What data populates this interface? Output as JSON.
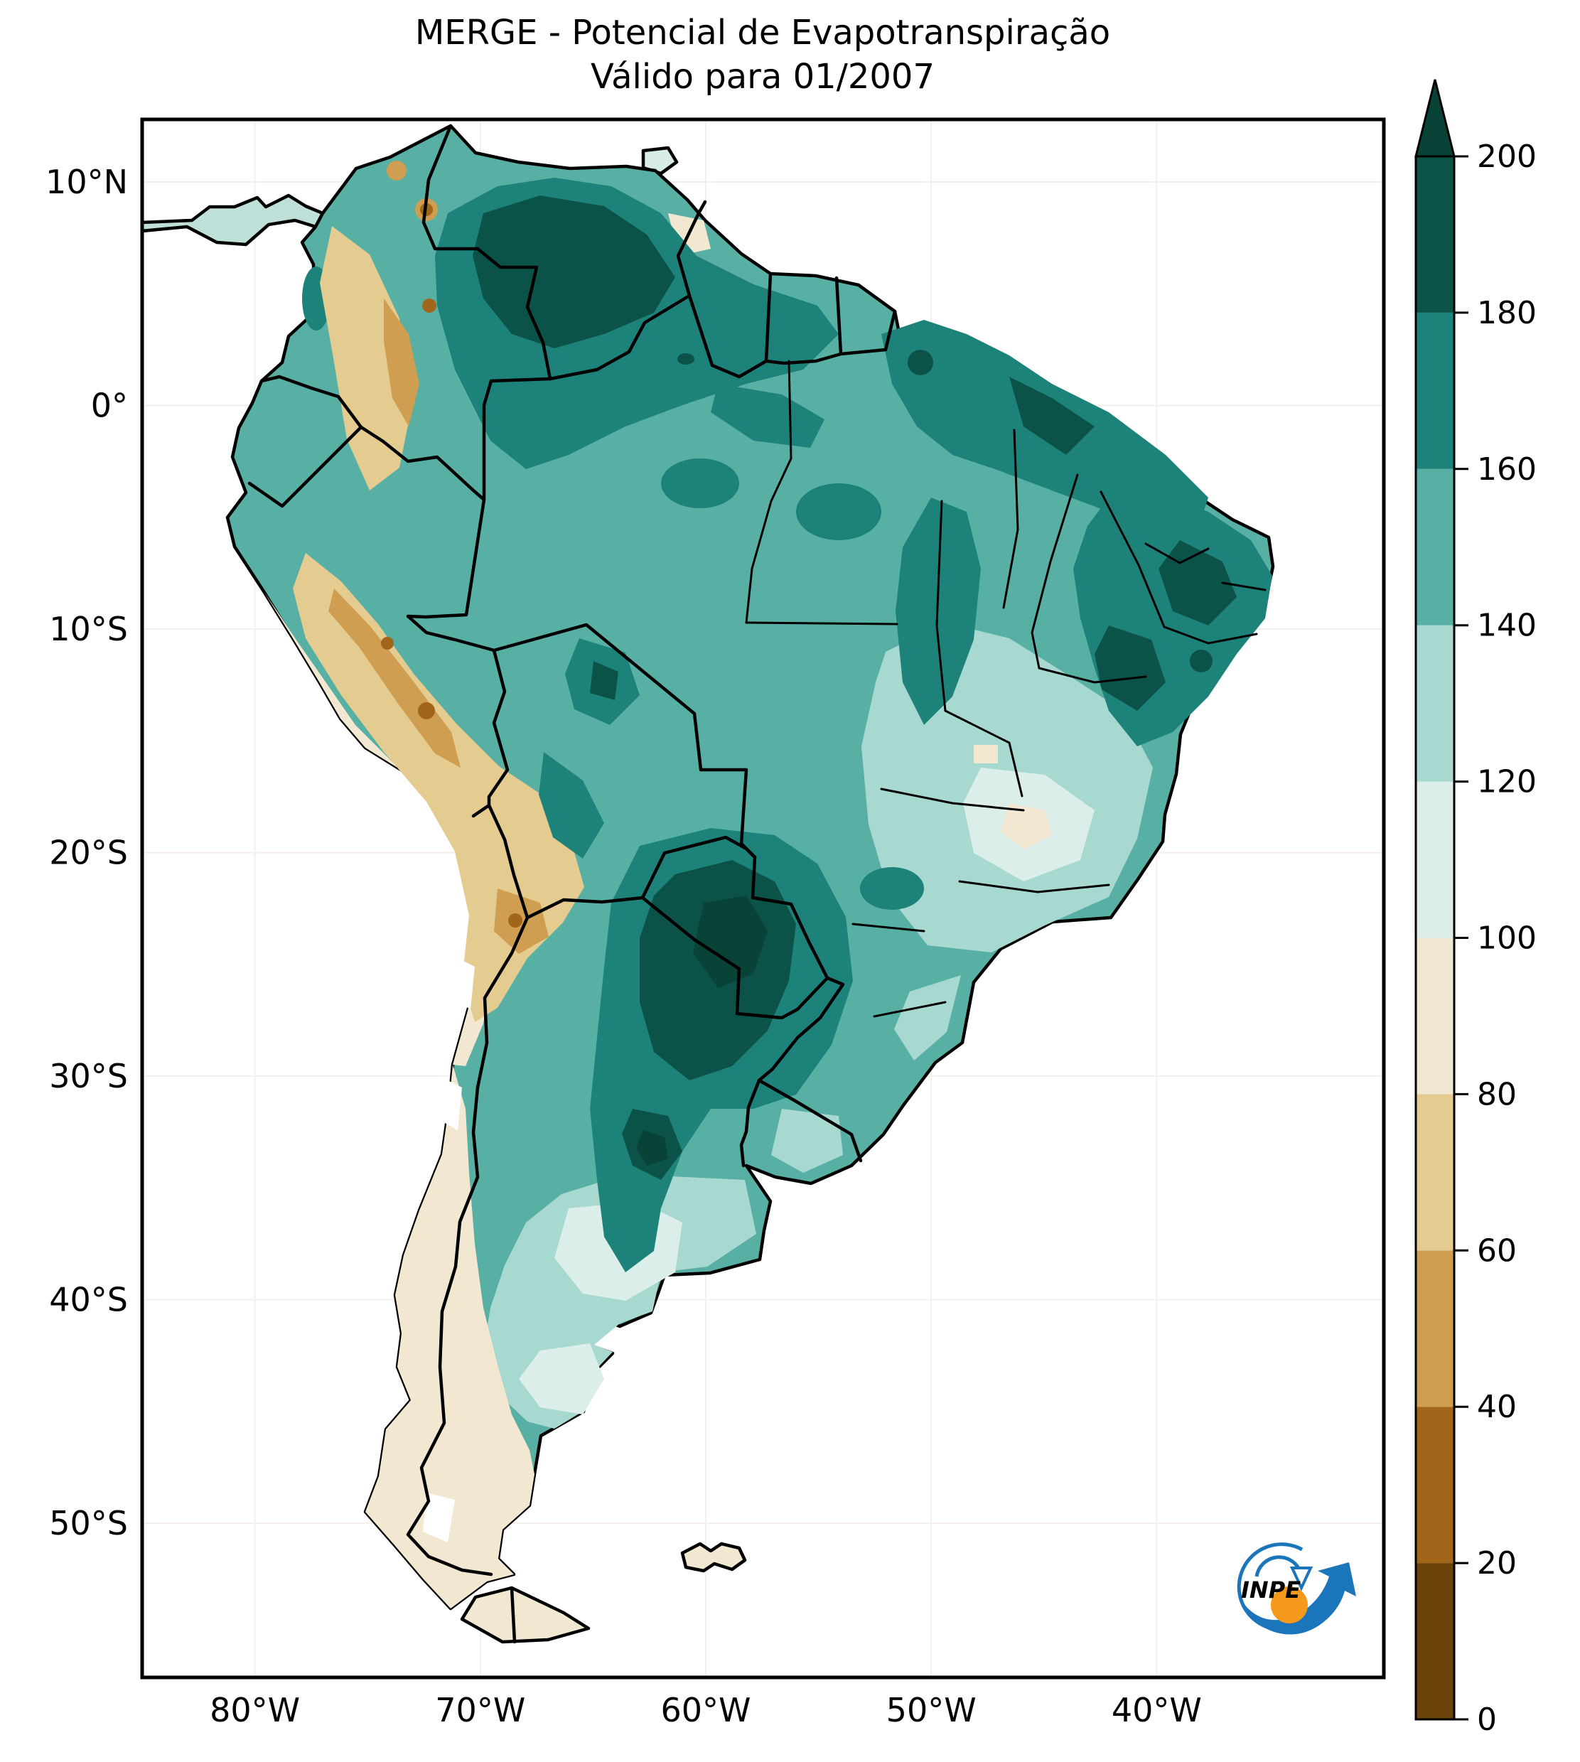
{
  "figure": {
    "title_line1": "MERGE - Potencial de Evapotranspiração",
    "title_line2": "Válido para 01/2007"
  },
  "axes": {
    "y_ticks": [
      {
        "label": "10°N",
        "lat": 10
      },
      {
        "label": "0°",
        "lat": 0
      },
      {
        "label": "10°S",
        "lat": -10
      },
      {
        "label": "20°S",
        "lat": -20
      },
      {
        "label": "30°S",
        "lat": -30
      },
      {
        "label": "40°S",
        "lat": -40
      },
      {
        "label": "50°S",
        "lat": -50
      }
    ],
    "x_ticks": [
      {
        "label": "80°W",
        "lon": -80
      },
      {
        "label": "70°W",
        "lon": -70
      },
      {
        "label": "60°W",
        "lon": -60
      },
      {
        "label": "50°W",
        "lon": -50
      },
      {
        "label": "40°W",
        "lon": -40
      }
    ]
  },
  "colorbar": {
    "min": 0,
    "max": 200,
    "ticks": [
      0,
      20,
      40,
      60,
      80,
      100,
      120,
      140,
      160,
      180,
      200
    ],
    "extend": "max",
    "extend_max_color": "#094237",
    "segments": [
      {
        "from": 0,
        "to": 20,
        "color": "#6b4208"
      },
      {
        "from": 20,
        "to": 40,
        "color": "#a2661b"
      },
      {
        "from": 40,
        "to": 60,
        "color": "#cf9e50"
      },
      {
        "from": 60,
        "to": 80,
        "color": "#e4cb90"
      },
      {
        "from": 80,
        "to": 100,
        "color": "#f2e8d1"
      },
      {
        "from": 100,
        "to": 120,
        "color": "#dceee9"
      },
      {
        "from": 120,
        "to": 140,
        "color": "#a8d9d0"
      },
      {
        "from": 140,
        "to": 160,
        "color": "#58b0a5"
      },
      {
        "from": 160,
        "to": 180,
        "color": "#1d837a"
      },
      {
        "from": 180,
        "to": 200,
        "color": "#0b5348"
      }
    ]
  },
  "logo": {
    "label": "INPE",
    "blue": "#1b75bb",
    "orange": "#f5991d"
  },
  "chart_data": {
    "type": "heatmap",
    "subtype": "filled-contour-geographic-map",
    "title": "MERGE - Potencial de Evapotranspiração",
    "subtitle": "Válido para 01/2007",
    "region": "South America",
    "xlabel": "",
    "ylabel": "",
    "x_tick_labels": [
      "80°W",
      "70°W",
      "60°W",
      "50°W",
      "40°W"
    ],
    "y_tick_labels": [
      "10°N",
      "0°",
      "10°S",
      "20°S",
      "30°S",
      "40°S",
      "50°S"
    ],
    "approx_extent": {
      "lon_min": -85,
      "lon_max": -30,
      "lat_min": -57,
      "lat_max": 13
    },
    "grid": true,
    "legend_position": "right-colorbar",
    "colorbar_levels": [
      0,
      20,
      40,
      60,
      80,
      100,
      120,
      140,
      160,
      180,
      200
    ],
    "colorbar_extend": "max",
    "regions_approx": [
      {
        "area": "Llanos (Venezuela / E Colombia)",
        "value": "180-200"
      },
      {
        "area": "North coast of Brazil (Amapa-Maranhao)",
        "value": "160-200"
      },
      {
        "area": "NE Brazil interior (sertao)",
        "value": "180-200"
      },
      {
        "area": "Amazon basin",
        "value": "140-160"
      },
      {
        "area": "Gran Chaco (Paraguay / N Argentina)",
        "value": "180-200+"
      },
      {
        "area": "Andes altiplano (Peru / Bolivia)",
        "value": "40-80"
      },
      {
        "area": "Peruvian coast / Atacama",
        "value": "60-100"
      },
      {
        "area": "SE Brazil (Minas / Sao Paulo)",
        "value": "100-140"
      },
      {
        "area": "Pampas (C Argentina)",
        "value": "120-140"
      },
      {
        "area": "Patagonia",
        "value": "80-100"
      }
    ]
  }
}
